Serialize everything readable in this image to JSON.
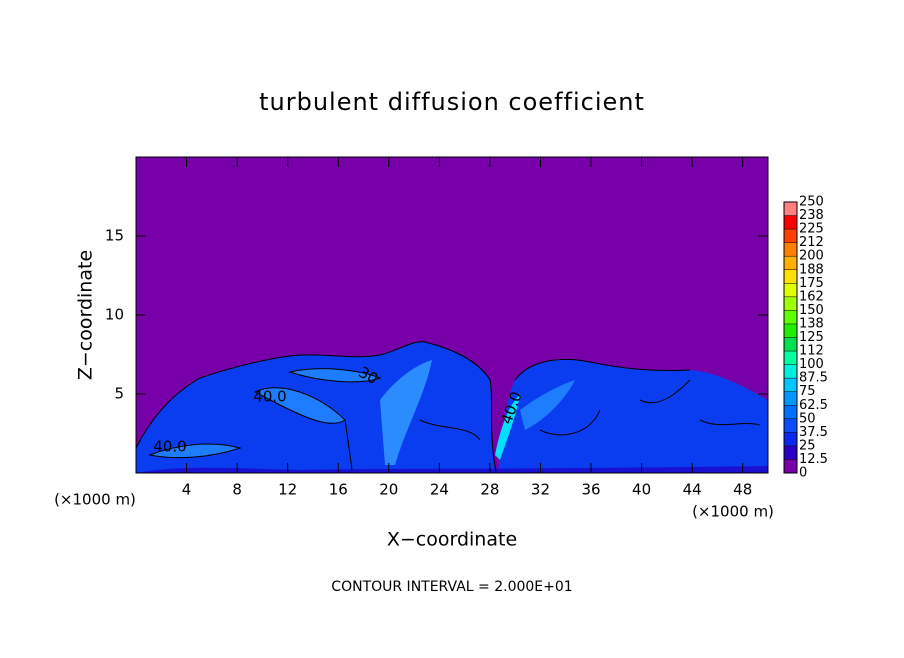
{
  "chart_data": {
    "type": "contour",
    "title": "turbulent diffusion coefficient",
    "x_label": "X−coordinate",
    "y_label": "Z−coordinate",
    "x_unit_left": "(×1000 m)",
    "x_unit_right": "(×1000 m)",
    "footnote": "CONTOUR INTERVAL = 2.000E+01",
    "xlim": [
      0,
      50
    ],
    "xticks": [
      4,
      8,
      12,
      16,
      20,
      24,
      28,
      32,
      36,
      40,
      44,
      48
    ],
    "ylim": [
      0,
      20
    ],
    "yticks": [
      5,
      10,
      15
    ],
    "contour_labels": [
      "40.0",
      "40.0",
      "40.0",
      "30"
    ],
    "colorbar": {
      "levels": [
        0,
        12.5,
        25,
        37.5,
        50,
        62.5,
        75,
        87.5,
        100,
        {
          "value": 112.5,
          "label": "112"
        },
        125,
        {
          "value": 137.5,
          "label": "138"
        },
        150,
        {
          "value": 162.5,
          "label": "162"
        },
        175,
        {
          "value": 187.5,
          "label": "188"
        },
        200,
        {
          "value": 212.5,
          "label": "212"
        },
        225,
        {
          "value": 237.5,
          "label": "238"
        },
        250
      ],
      "colors": [
        "#7800a8",
        "#2a00c8",
        "#0a28f0",
        "#0a4cff",
        "#0070ff",
        "#0098ff",
        "#00c8ff",
        "#00f0e0",
        "#00ffa0",
        "#00e050",
        "#20f000",
        "#60ff00",
        "#a0ff00",
        "#e0ff00",
        "#ffe000",
        "#ffb000",
        "#ff8000",
        "#ff4000",
        "#ff0000",
        "#ff8080"
      ]
    }
  }
}
